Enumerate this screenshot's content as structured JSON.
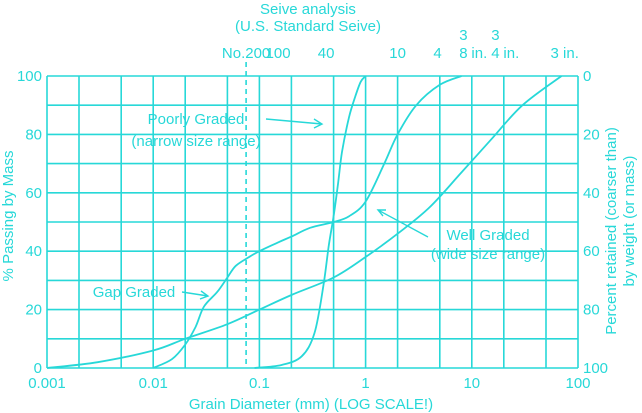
{
  "chart_data": {
    "type": "line",
    "title": "Seive analysis",
    "subtitle": "(U.S. Standard Seive)",
    "xlabel": "Grain Diameter (mm) (LOG SCALE!)",
    "ylabel": "% Passing by Mass",
    "ylabel_right_1": "Percent retained (coarser than)",
    "ylabel_right_2": "by weight (or mass)",
    "x_scale": "log",
    "xlim": [
      0.001,
      100
    ],
    "ylim": [
      0,
      100
    ],
    "grid": true,
    "color": "#27d8d8",
    "x_ticks": [
      {
        "value": 0.001,
        "label": "0.001"
      },
      {
        "value": 0.01,
        "label": "0.01"
      },
      {
        "value": 0.1,
        "label": "0.1"
      },
      {
        "value": 1,
        "label": "1"
      },
      {
        "value": 10,
        "label": "10"
      },
      {
        "value": 100,
        "label": "100"
      }
    ],
    "y_ticks_left": [
      "0",
      "20",
      "40",
      "60",
      "80",
      "100"
    ],
    "y_ticks_right": [
      "100",
      "80",
      "60",
      "40",
      "20",
      "0"
    ],
    "sieves": [
      {
        "label": "No.200",
        "size": 0.075
      },
      {
        "label": "100",
        "size": 0.15
      },
      {
        "label": "40",
        "size": 0.425
      },
      {
        "label": "10",
        "size": 2.0
      },
      {
        "label": "4",
        "size": 4.75
      },
      {
        "label": "3/8 in.",
        "num": "3",
        "den": "8",
        "unit": "in.",
        "size": 9.5
      },
      {
        "label": "3/4 in.",
        "num": "3",
        "den": "4",
        "unit": "in.",
        "size": 19.0
      },
      {
        "label": "3 in.",
        "size": 75.0
      }
    ],
    "dashed_line_x": 0.075,
    "series": [
      {
        "name": "Poorly Graded",
        "name2": "(narrow size range)",
        "x": [
          0.09,
          0.16,
          0.25,
          0.33,
          0.4,
          0.45,
          0.5,
          0.55,
          0.6,
          0.7,
          0.8,
          0.9,
          1.0
        ],
        "y": [
          0,
          1,
          4,
          12,
          28,
          42,
          52,
          63,
          74,
          86,
          93,
          98,
          100
        ]
      },
      {
        "name": "Well Graded",
        "name2": "(wide size range)",
        "x": [
          0.001,
          0.003,
          0.01,
          0.02,
          0.05,
          0.1,
          0.2,
          0.5,
          1.0,
          2.0,
          4.0,
          8.0,
          15.0,
          30.0,
          70.0
        ],
        "y": [
          0,
          2,
          6,
          10,
          15,
          20,
          25,
          31,
          38,
          46,
          55,
          67,
          78,
          90,
          100
        ]
      },
      {
        "name": "Gap Graded",
        "x": [
          0.01,
          0.015,
          0.02,
          0.025,
          0.03,
          0.04,
          0.05,
          0.06,
          0.08,
          0.1,
          0.15,
          0.2,
          0.3,
          0.5,
          0.7,
          1.0,
          1.5,
          2.0,
          3.0,
          5.0,
          8.0
        ],
        "y": [
          0,
          3,
          8,
          14,
          21,
          26,
          31,
          35,
          38,
          40,
          43,
          45,
          48,
          50,
          52,
          57,
          70,
          80,
          90,
          97,
          100
        ]
      }
    ]
  }
}
